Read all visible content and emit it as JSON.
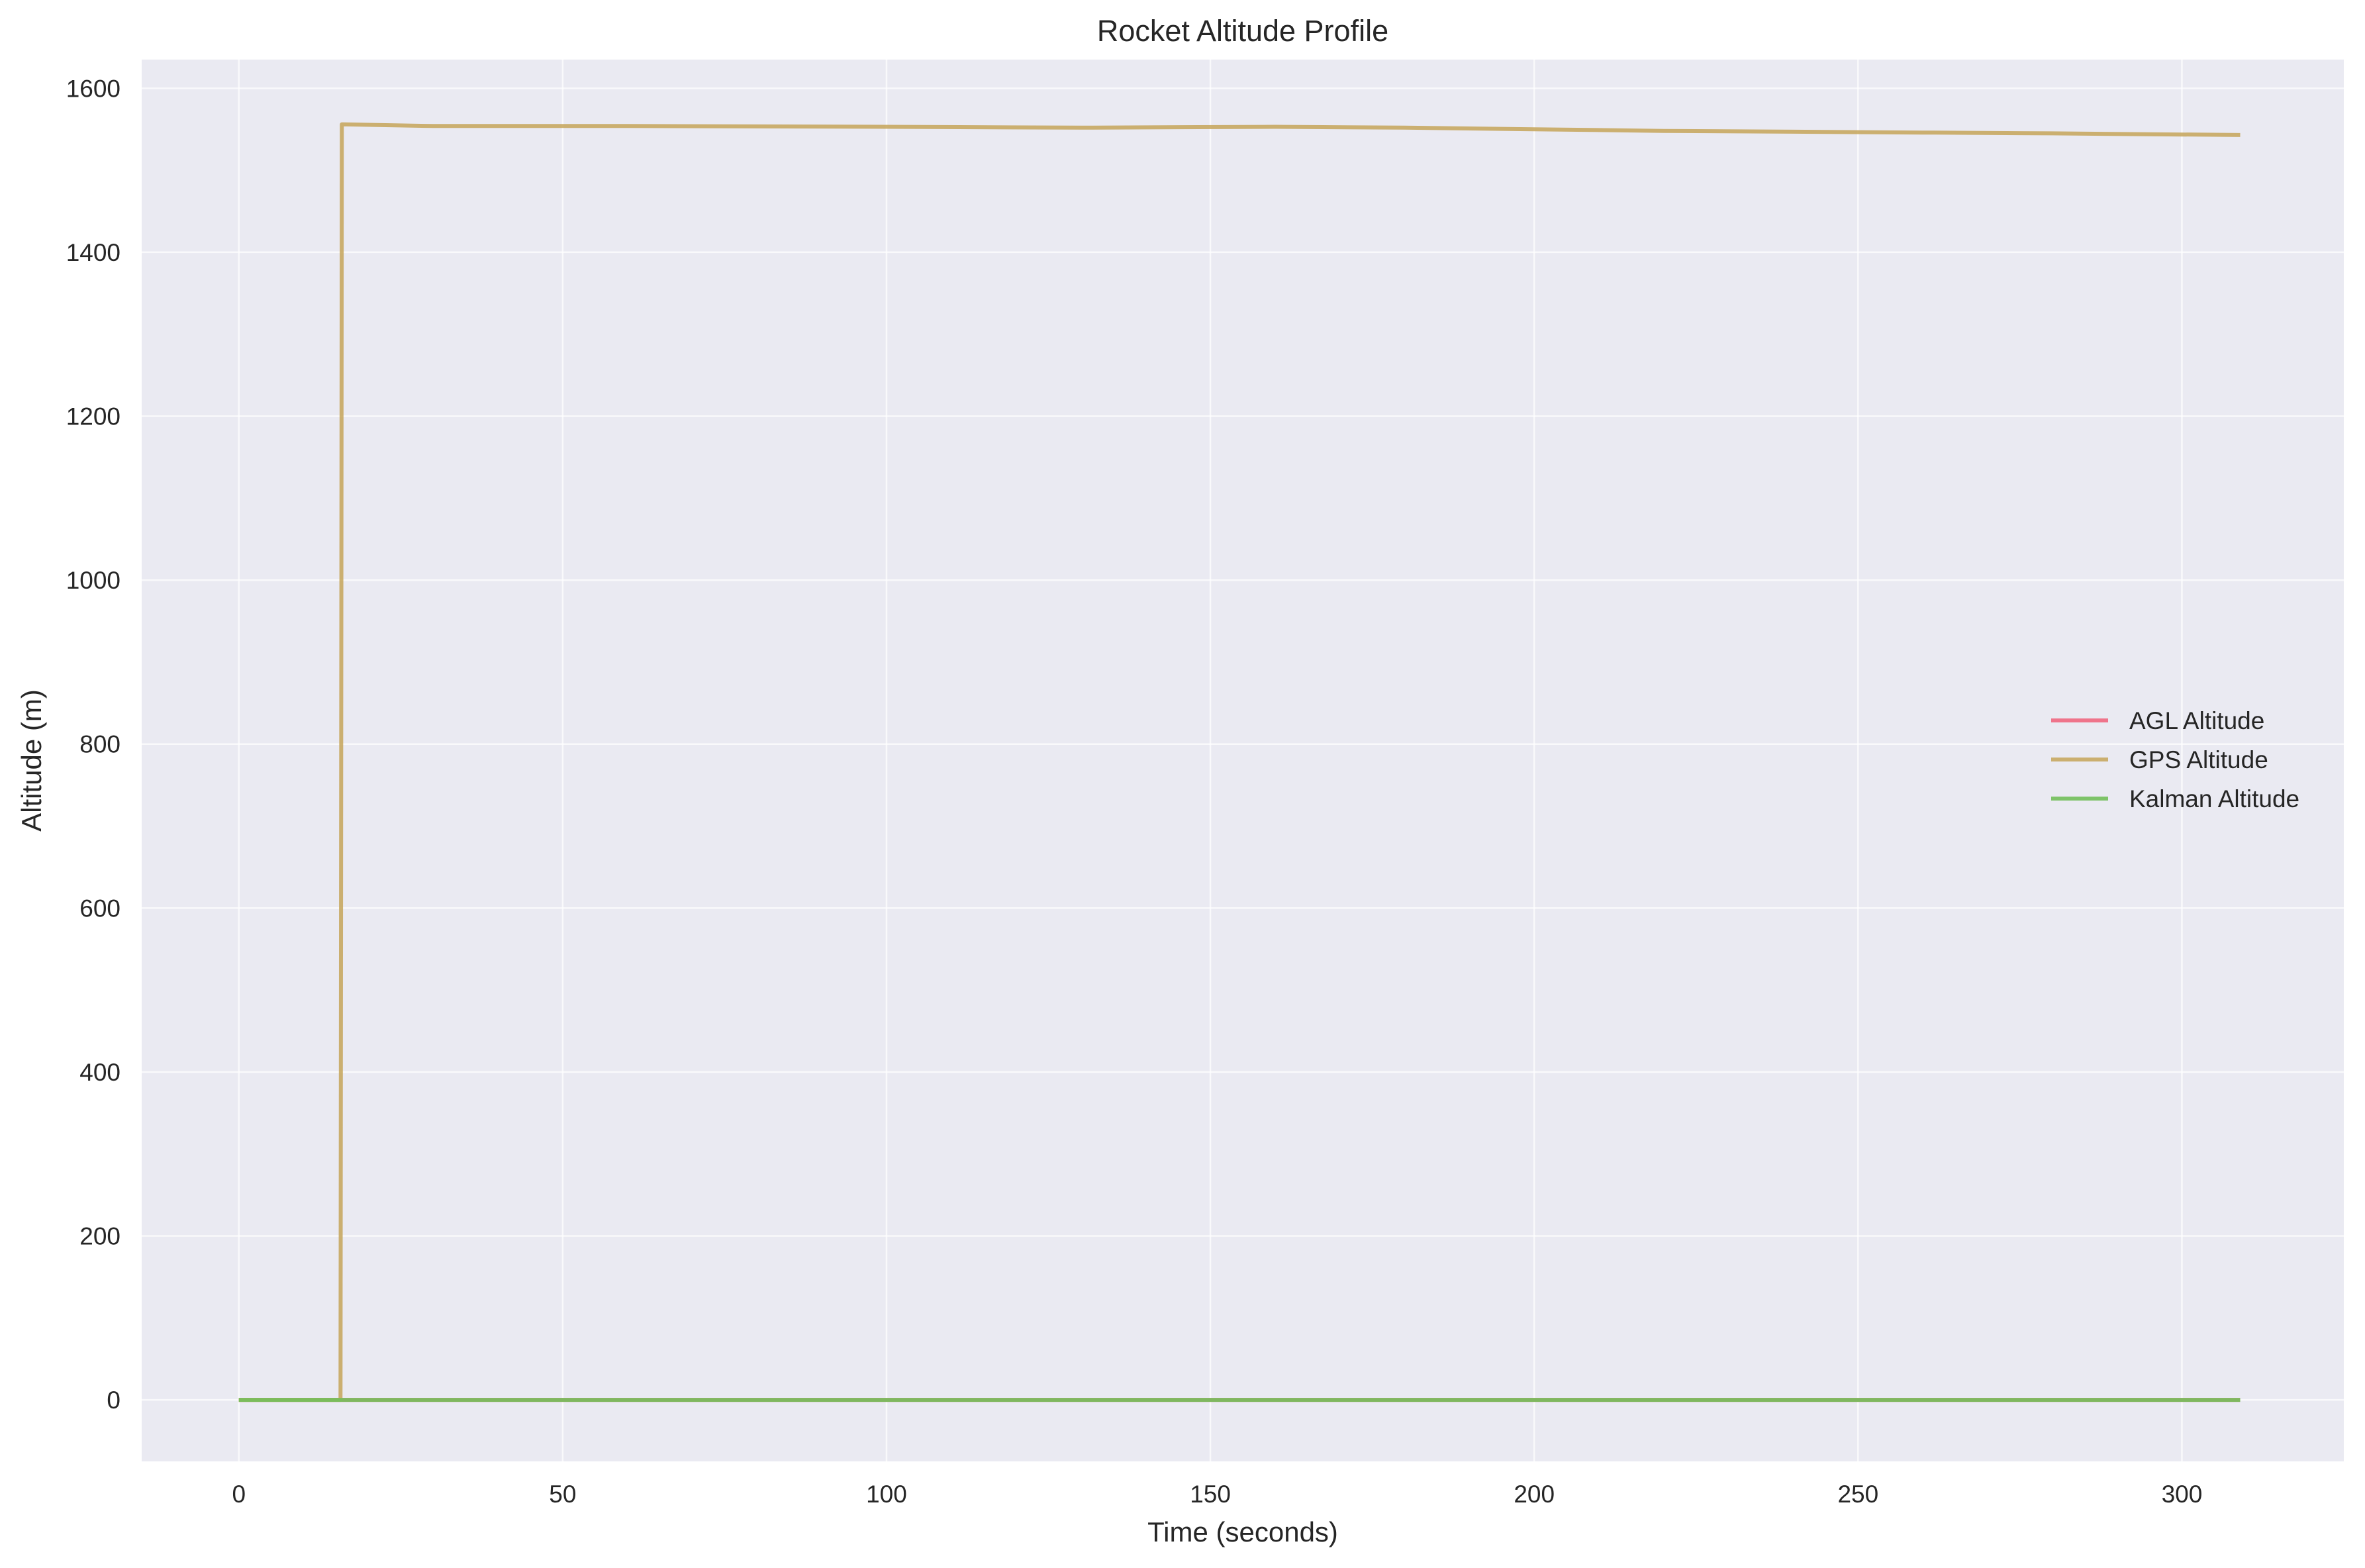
{
  "chart_data": {
    "type": "line",
    "title": "Rocket Altitude Profile",
    "xlabel": "Time (seconds)",
    "ylabel": "Altitude (m)",
    "xlim": [
      -15,
      325
    ],
    "ylim": [
      -75,
      1635
    ],
    "grid": true,
    "legend_position": "center-right",
    "x_ticks": [
      0,
      50,
      100,
      150,
      200,
      250,
      300
    ],
    "y_ticks": [
      0,
      200,
      400,
      600,
      800,
      1000,
      1200,
      1400,
      1600
    ],
    "series": [
      {
        "name": "AGL Altitude",
        "color": "#f0677f",
        "x": [
          0,
          309
        ],
        "y": [
          0,
          0
        ]
      },
      {
        "name": "GPS Altitude",
        "color": "#c8a862",
        "x": [
          0,
          15.7,
          15.9,
          30,
          60,
          100,
          130,
          160,
          180,
          200,
          220,
          240,
          260,
          280,
          309
        ],
        "y": [
          0,
          0,
          1556,
          1554,
          1554,
          1553,
          1552,
          1553,
          1552,
          1550,
          1548,
          1547,
          1546,
          1545,
          1543
        ]
      },
      {
        "name": "Kalman Altitude",
        "color": "#72bf5a",
        "x": [
          0,
          309
        ],
        "y": [
          0,
          0
        ]
      }
    ]
  }
}
